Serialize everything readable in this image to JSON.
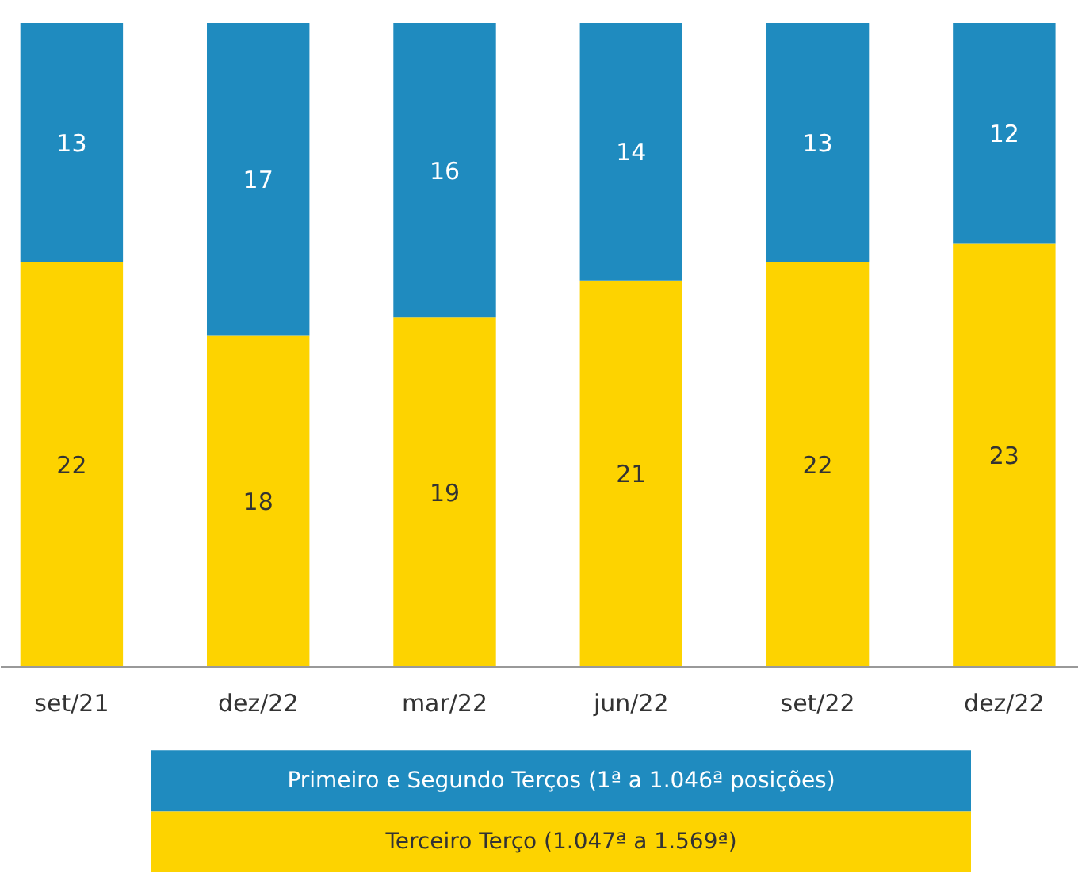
{
  "chart_data": {
    "type": "bar",
    "stacked": true,
    "data_labels": true,
    "legend": "bottom",
    "grid": false,
    "categories": [
      "set/21",
      "dez/22",
      "mar/22",
      "jun/22",
      "set/22",
      "dez/22"
    ],
    "series": [
      {
        "name": "Terceiro Terço (1.047ª a 1.569ª)",
        "color": "#fdd300",
        "values": [
          22,
          18,
          19,
          21,
          22,
          23
        ]
      },
      {
        "name": "Primeiro e Segundo Terços (1ª a 1.046ª posições)",
        "color": "#1f8bbf",
        "values": [
          13,
          17,
          16,
          14,
          13,
          12
        ]
      }
    ]
  }
}
